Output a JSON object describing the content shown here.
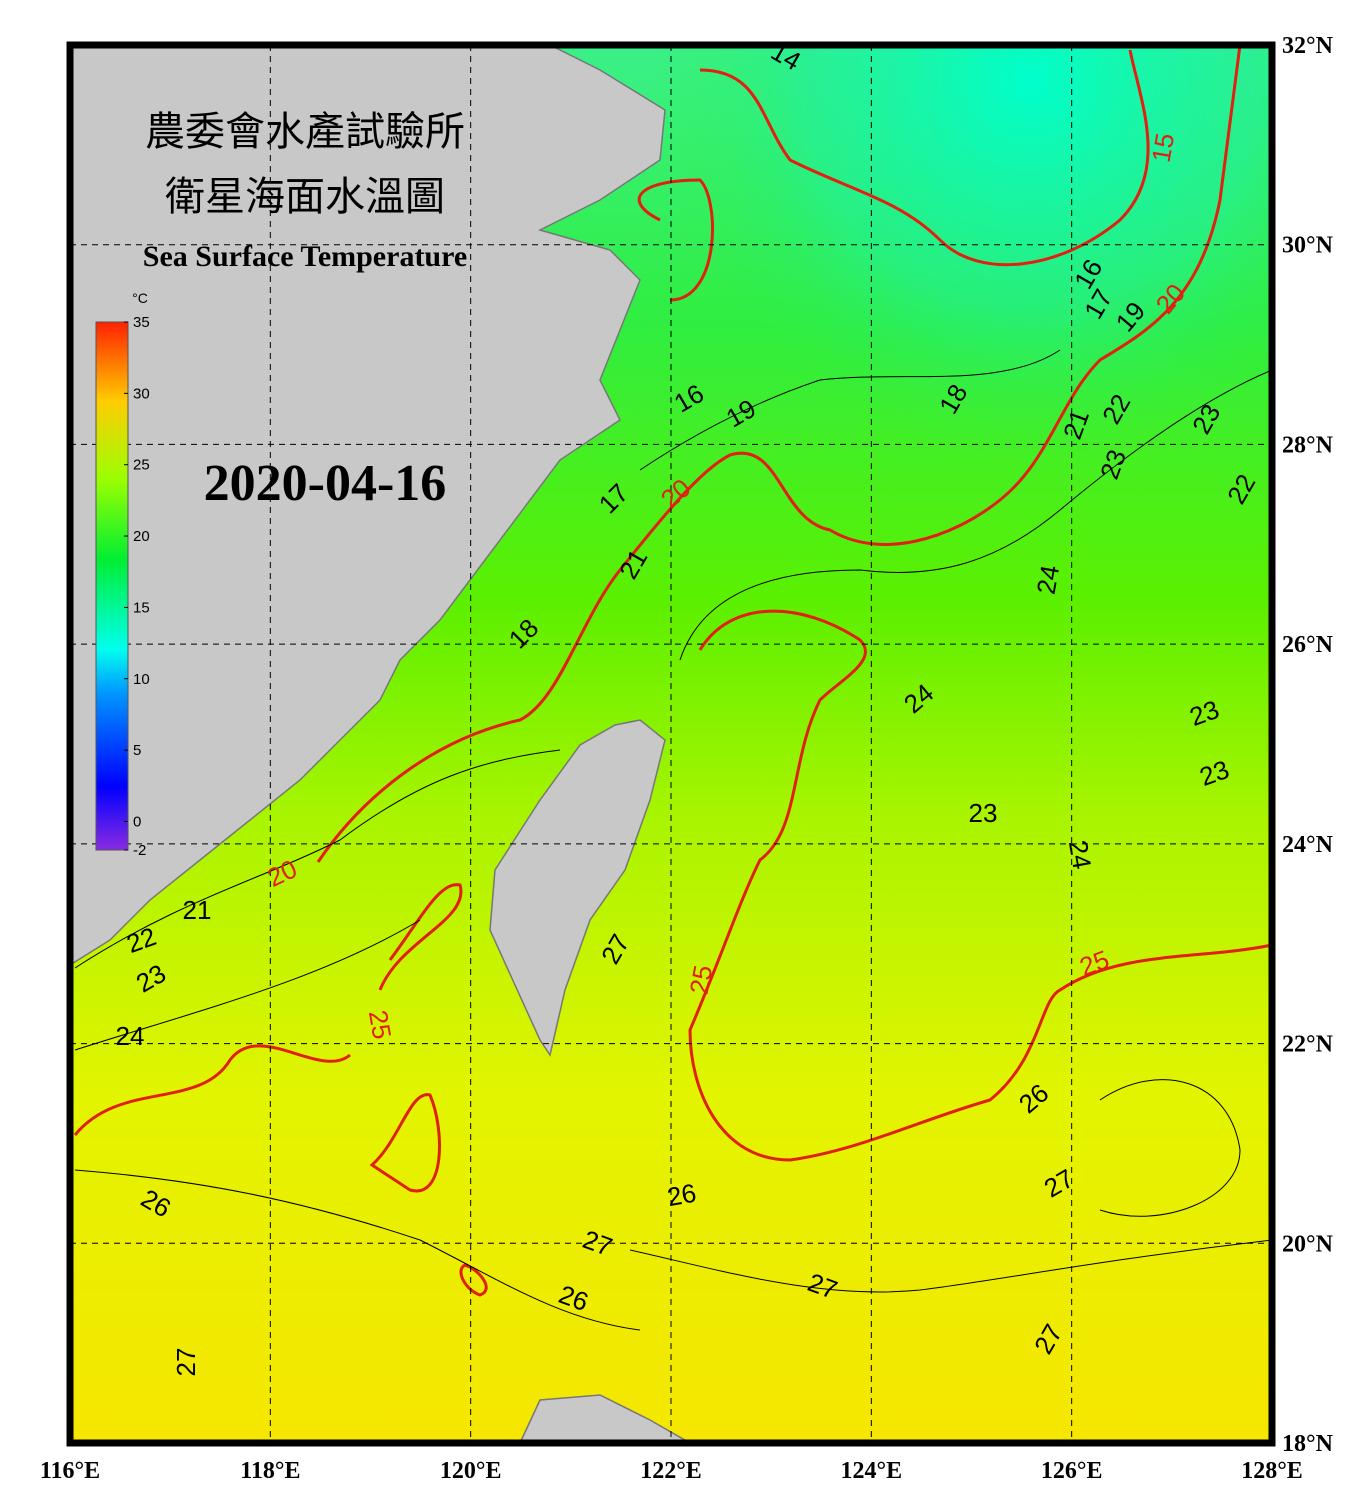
{
  "map": {
    "title_zh": "農委會水產試驗所",
    "subtitle_zh": "衛星海面水溫圖",
    "title_en": "Sea Surface Temperature",
    "date": "2020-04-16",
    "colorbar": {
      "unit": "°C",
      "ticks": [
        -2,
        0,
        5,
        10,
        15,
        20,
        25,
        30,
        35
      ]
    },
    "lon_ticks": [
      {
        "value": 116,
        "label": "116°E"
      },
      {
        "value": 118,
        "label": "118°E"
      },
      {
        "value": 120,
        "label": "120°E"
      },
      {
        "value": 122,
        "label": "122°E"
      },
      {
        "value": 124,
        "label": "124°E"
      },
      {
        "value": 126,
        "label": "126°E"
      },
      {
        "value": 128,
        "label": "128°E"
      }
    ],
    "lat_ticks": [
      {
        "value": 18,
        "label": "18°N"
      },
      {
        "value": 20,
        "label": "20°N"
      },
      {
        "value": 22,
        "label": "22°N"
      },
      {
        "value": 24,
        "label": "24°N"
      },
      {
        "value": 26,
        "label": "26°N"
      },
      {
        "value": 28,
        "label": "28°N"
      },
      {
        "value": 30,
        "label": "30°N"
      },
      {
        "value": 32,
        "label": "32°N"
      }
    ],
    "contour_labels": [
      14,
      15,
      16,
      17,
      19,
      20,
      16,
      19,
      18,
      21,
      22,
      23,
      23,
      22,
      17,
      20,
      21,
      24,
      18,
      24,
      23,
      23,
      23,
      24,
      20,
      21,
      22,
      23,
      27,
      25,
      25,
      25,
      24,
      26,
      27,
      26,
      26,
      27,
      27,
      26,
      27,
      27
    ]
  }
}
